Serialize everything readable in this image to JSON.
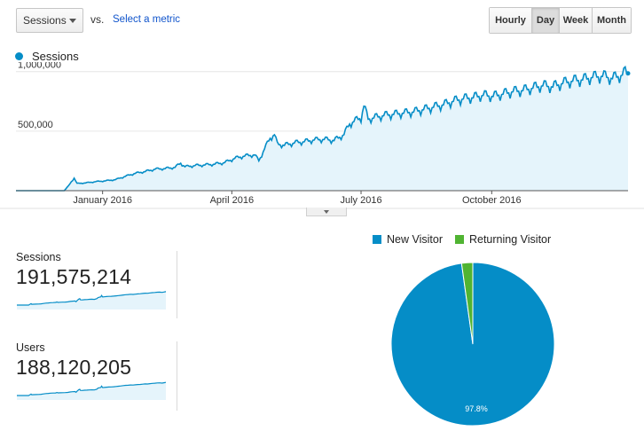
{
  "controls": {
    "metric_select": "Sessions",
    "vs_label": "vs.",
    "select_metric_link": "Select a metric",
    "granularity": [
      {
        "label": "Hourly",
        "active": false
      },
      {
        "label": "Day",
        "active": true
      },
      {
        "label": "Week",
        "active": false
      },
      {
        "label": "Month",
        "active": false
      }
    ]
  },
  "colors": {
    "primary_series": "#058dc7",
    "area_fill": "#e5f4fb",
    "returning_visitor": "#50b432"
  },
  "chart_data": [
    {
      "type": "area",
      "series": [
        {
          "name": "Sessions",
          "points": [
            [
              "2015-11-01",
              0
            ],
            [
              "2015-11-15",
              0
            ],
            [
              "2015-11-29",
              0
            ],
            [
              "2015-12-05",
              0
            ],
            [
              "2015-12-08",
              40000
            ],
            [
              "2015-12-10",
              75000
            ],
            [
              "2015-12-12",
              105000
            ],
            [
              "2015-12-14",
              60000
            ],
            [
              "2015-12-20",
              65000
            ],
            [
              "2015-12-27",
              75000
            ],
            [
              "2016-01-03",
              82000
            ],
            [
              "2016-01-10",
              92000
            ],
            [
              "2016-01-17",
              120000
            ],
            [
              "2016-01-24",
              145000
            ],
            [
              "2016-01-31",
              160000
            ],
            [
              "2016-02-07",
              180000
            ],
            [
              "2016-02-14",
              185000
            ],
            [
              "2016-02-21",
              195000
            ],
            [
              "2016-02-25",
              230000
            ],
            [
              "2016-02-28",
              200000
            ],
            [
              "2016-03-06",
              210000
            ],
            [
              "2016-03-13",
              215000
            ],
            [
              "2016-03-20",
              222000
            ],
            [
              "2016-03-27",
              235000
            ],
            [
              "2016-04-03",
              270000
            ],
            [
              "2016-04-10",
              290000
            ],
            [
              "2016-04-17",
              300000
            ],
            [
              "2016-04-20",
              250000
            ],
            [
              "2016-04-24",
              350000
            ],
            [
              "2016-04-28",
              440000
            ],
            [
              "2016-05-01",
              470000
            ],
            [
              "2016-05-03",
              390000
            ],
            [
              "2016-05-08",
              380000
            ],
            [
              "2016-05-15",
              400000
            ],
            [
              "2016-05-22",
              410000
            ],
            [
              "2016-05-29",
              425000
            ],
            [
              "2016-06-05",
              430000
            ],
            [
              "2016-06-12",
              420000
            ],
            [
              "2016-06-19",
              470000
            ],
            [
              "2016-06-23",
              560000
            ],
            [
              "2016-06-26",
              580000
            ],
            [
              "2016-07-01",
              610000
            ],
            [
              "2016-07-03",
              710000
            ],
            [
              "2016-07-06",
              600000
            ],
            [
              "2016-07-10",
              610000
            ],
            [
              "2016-07-17",
              630000
            ],
            [
              "2016-07-24",
              640000
            ],
            [
              "2016-07-31",
              650000
            ],
            [
              "2016-08-07",
              660000
            ],
            [
              "2016-08-14",
              680000
            ],
            [
              "2016-08-21",
              700000
            ],
            [
              "2016-08-28",
              720000
            ],
            [
              "2016-09-04",
              750000
            ],
            [
              "2016-09-11",
              770000
            ],
            [
              "2016-09-18",
              780000
            ],
            [
              "2016-09-25",
              800000
            ],
            [
              "2016-10-02",
              790000
            ],
            [
              "2016-10-09",
              810000
            ],
            [
              "2016-10-16",
              830000
            ],
            [
              "2016-10-23",
              840000
            ],
            [
              "2016-10-30",
              860000
            ],
            [
              "2016-11-06",
              880000
            ],
            [
              "2016-11-13",
              870000
            ],
            [
              "2016-11-20",
              900000
            ],
            [
              "2016-11-27",
              920000
            ],
            [
              "2016-12-04",
              930000
            ],
            [
              "2016-12-11",
              950000
            ],
            [
              "2016-12-18",
              960000
            ],
            [
              "2016-12-25",
              940000
            ],
            [
              "2017-01-01",
              970000
            ],
            [
              "2017-01-03",
              990000
            ],
            [
              "2017-01-05",
              985000
            ]
          ]
        }
      ],
      "y_ticks": [
        "1,000,000",
        "500,000"
      ],
      "x_ticks": [
        "January 2016",
        "April 2016",
        "July 2016",
        "October 2016"
      ],
      "x_range": [
        "2015-11-01",
        "2017-01-05"
      ],
      "ylim": [
        0,
        1050000
      ],
      "legend": "top-left"
    },
    {
      "type": "pie",
      "series": [
        {
          "name": "New Visitor",
          "value": 97.8,
          "color": "#058dc7"
        },
        {
          "name": "Returning Visitor",
          "value": 2.2,
          "color": "#50b432"
        }
      ],
      "slice_labels": [
        "97.8%"
      ],
      "legend": "top"
    }
  ],
  "scorecards": [
    {
      "label": "Sessions",
      "value": "191,575,214"
    },
    {
      "label": "Users",
      "value": "188,120,205"
    }
  ]
}
